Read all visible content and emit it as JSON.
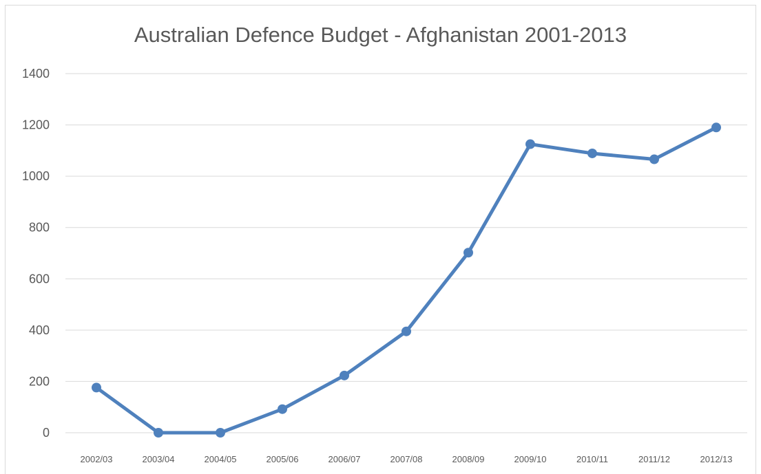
{
  "chart_data": {
    "type": "line",
    "title": "Australian Defence Budget - Afghanistan 2001-2013",
    "xlabel": "",
    "ylabel": "",
    "categories": [
      "2002/03",
      "2003/04",
      "2004/05",
      "2005/06",
      "2006/07",
      "2007/08",
      "2008/09",
      "2009/10",
      "2010/11",
      "2011/12",
      "2012/13"
    ],
    "series": [
      {
        "values": [
          176,
          0,
          0,
          92,
          223,
          395,
          702,
          1125,
          1089,
          1066,
          1190
        ]
      }
    ],
    "ylim": [
      0,
      1400
    ],
    "yticks": [
      0,
      200,
      400,
      600,
      800,
      1000,
      1200,
      1400
    ],
    "grid": true,
    "legend": "none",
    "colors": {
      "series": "#4f81bd",
      "grid": "#d9d9d9",
      "text": "#595959"
    }
  }
}
